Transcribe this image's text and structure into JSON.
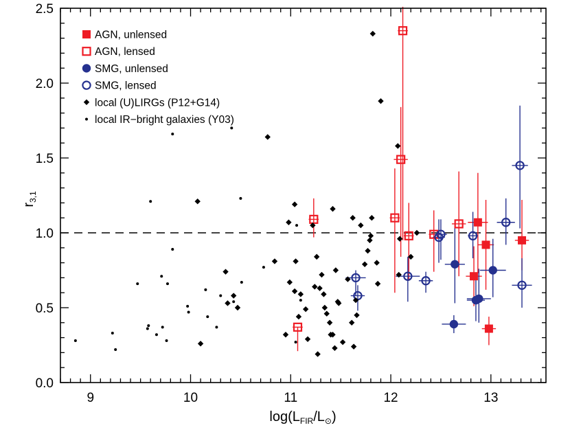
{
  "chart_data": {
    "type": "scatter",
    "x_label": {
      "prefix": "log(L",
      "sub": "FIR",
      "mid": "/L",
      "sun_sub": "⊙",
      "suffix": ")"
    },
    "y_label": {
      "main": "r",
      "sub": "3,1"
    },
    "xlim": [
      8.7,
      13.55
    ],
    "ylim": [
      0.0,
      2.5
    ],
    "x_ticks": [
      9,
      10,
      11,
      12,
      13
    ],
    "x_tick_labels": [
      "9",
      "10",
      "11",
      "12",
      "13"
    ],
    "y_ticks": [
      0.0,
      0.5,
      1.0,
      1.5,
      2.0,
      2.5
    ],
    "y_tick_labels": [
      "0.0",
      "0.5",
      "1.0",
      "1.5",
      "2.0",
      "2.5"
    ],
    "reference_line_y": 1.0,
    "legend_position": "top-left",
    "colors": {
      "agn": "#ee1c25",
      "smg": "#25318f",
      "local": "#000000"
    },
    "series": [
      {
        "name": "AGN, unlensed",
        "marker": "filled-square",
        "color": "#ee1c25",
        "points": [
          {
            "x": 12.87,
            "y": 1.07,
            "yerr": [
              0.34,
              0.33
            ],
            "xerr": 0.1
          },
          {
            "x": 12.95,
            "y": 0.92,
            "yerr": [
              0.3,
              0.3
            ],
            "xerr": 0.08
          },
          {
            "x": 12.83,
            "y": 0.71,
            "yerr": [
              0.2,
              0.2
            ],
            "xerr": 0.08
          },
          {
            "x": 12.98,
            "y": 0.36,
            "yerr": [
              0.11,
              0.08
            ],
            "xerr": 0.07
          },
          {
            "x": 13.31,
            "y": 0.95,
            "yerr": [
              0.2,
              0.27
            ],
            "xerr": 0.07
          }
        ]
      },
      {
        "name": "AGN, lensed",
        "marker": "open-square",
        "color": "#ee1c25",
        "points": [
          {
            "x": 11.07,
            "y": 0.37,
            "yerr": [
              0.16,
              0.0
            ],
            "xerr": 0.05
          },
          {
            "x": 11.23,
            "y": 1.09,
            "yerr": [
              0.12,
              0.14
            ],
            "xerr": 0.05
          },
          {
            "x": 12.04,
            "y": 1.1,
            "yerr": [
              0.5,
              0.33
            ],
            "xerr": 0.05
          },
          {
            "x": 12.1,
            "y": 1.49,
            "yerr": [
              0.65,
              0.35
            ],
            "xerr": 0.07
          },
          {
            "x": 12.12,
            "y": 2.35,
            "yerr": [
              1.4,
              0.16
            ],
            "xerr": 0.05
          },
          {
            "x": 12.18,
            "y": 0.98,
            "yerr": [
              0.3,
              0.22
            ],
            "xerr": 0.05
          },
          {
            "x": 12.43,
            "y": 0.99,
            "yerr": [
              0.25,
              0.16
            ],
            "xerr": 0.05
          },
          {
            "x": 12.68,
            "y": 1.06,
            "yerr": [
              0.35,
              0.35
            ],
            "xerr": 0.07
          }
        ]
      },
      {
        "name": "SMG, unlensed",
        "marker": "filled-circle",
        "color": "#25318f",
        "points": [
          {
            "x": 12.63,
            "y": 0.39,
            "yerr": [
              0.06,
              0.06
            ],
            "xerr": 0.12
          },
          {
            "x": 12.64,
            "y": 0.79,
            "yerr": [
              0.26,
              0.25
            ],
            "xerr": 0.1
          },
          {
            "x": 12.85,
            "y": 0.55,
            "yerr": [
              0.14,
              0.15
            ],
            "xerr": 0.09
          },
          {
            "x": 12.88,
            "y": 0.56,
            "yerr": [
              0.16,
              0.2
            ],
            "xerr": 0.12
          },
          {
            "x": 13.02,
            "y": 0.75,
            "yerr": [
              0.18,
              0.21
            ],
            "xerr": 0.13
          }
        ]
      },
      {
        "name": "SMG, lensed",
        "marker": "open-circle",
        "color": "#25318f",
        "points": [
          {
            "x": 11.65,
            "y": 0.7,
            "yerr": [
              0.12,
              0.05
            ],
            "xerr": 0.1
          },
          {
            "x": 11.67,
            "y": 0.58,
            "yerr": [
              0.1,
              0.07
            ],
            "xerr": 0.07
          },
          {
            "x": 12.17,
            "y": 0.71,
            "yerr": [
              0.17,
              0.13
            ],
            "xerr": 0.12
          },
          {
            "x": 12.35,
            "y": 0.68,
            "yerr": [
              0.08,
              0.06
            ],
            "xerr": 0.07
          },
          {
            "x": 12.48,
            "y": 0.97,
            "yerr": [
              0.17,
              0.12
            ],
            "xerr": 0.06
          },
          {
            "x": 12.5,
            "y": 0.99,
            "yerr": [
              0.17,
              0.1
            ],
            "xerr": 0.06
          },
          {
            "x": 12.82,
            "y": 0.98,
            "yerr": [
              0.15,
              0.16
            ],
            "xerr": 0.05
          },
          {
            "x": 13.15,
            "y": 1.07,
            "yerr": [
              0.15,
              0.16
            ],
            "xerr": 0.09
          },
          {
            "x": 13.29,
            "y": 1.45,
            "yerr": [
              0.42,
              0.4
            ],
            "xerr": 0.08
          },
          {
            "x": 13.31,
            "y": 0.65,
            "yerr": [
              0.15,
              0.18
            ],
            "xerr": 0.1
          }
        ]
      },
      {
        "name": "local (U)LIRGs (P12+G14)",
        "marker": "diamond",
        "color": "#000000",
        "points": [
          {
            "x": 10.07,
            "y": 1.21
          },
          {
            "x": 10.1,
            "y": 0.26
          },
          {
            "x": 10.35,
            "y": 0.74
          },
          {
            "x": 10.37,
            "y": 0.53
          },
          {
            "x": 10.43,
            "y": 0.58
          },
          {
            "x": 10.47,
            "y": 0.5
          },
          {
            "x": 10.77,
            "y": 1.64
          },
          {
            "x": 10.84,
            "y": 0.81
          },
          {
            "x": 10.95,
            "y": 0.32
          },
          {
            "x": 10.98,
            "y": 1.07
          },
          {
            "x": 10.99,
            "y": 0.67
          },
          {
            "x": 11.04,
            "y": 1.19
          },
          {
            "x": 11.05,
            "y": 0.81
          },
          {
            "x": 11.04,
            "y": 0.61
          },
          {
            "x": 11.08,
            "y": 0.44
          },
          {
            "x": 11.1,
            "y": 0.59
          },
          {
            "x": 11.15,
            "y": 0.49
          },
          {
            "x": 11.17,
            "y": 0.29
          },
          {
            "x": 11.22,
            "y": 1.05
          },
          {
            "x": 11.24,
            "y": 0.64
          },
          {
            "x": 11.26,
            "y": 0.84
          },
          {
            "x": 11.29,
            "y": 0.63
          },
          {
            "x": 11.27,
            "y": 0.19
          },
          {
            "x": 11.31,
            "y": 0.72
          },
          {
            "x": 11.33,
            "y": 0.59
          },
          {
            "x": 11.34,
            "y": 0.5
          },
          {
            "x": 11.36,
            "y": 0.46
          },
          {
            "x": 11.39,
            "y": 0.4
          },
          {
            "x": 11.4,
            "y": 0.32
          },
          {
            "x": 11.42,
            "y": 0.32
          },
          {
            "x": 11.42,
            "y": 1.16
          },
          {
            "x": 11.45,
            "y": 0.75
          },
          {
            "x": 11.47,
            "y": 0.54
          },
          {
            "x": 11.48,
            "y": 0.53
          },
          {
            "x": 11.44,
            "y": 0.23
          },
          {
            "x": 11.52,
            "y": 0.27
          },
          {
            "x": 11.57,
            "y": 0.69
          },
          {
            "x": 11.61,
            "y": 0.4
          },
          {
            "x": 11.63,
            "y": 0.24
          },
          {
            "x": 11.62,
            "y": 1.1
          },
          {
            "x": 11.65,
            "y": 0.55
          },
          {
            "x": 11.66,
            "y": 0.45
          },
          {
            "x": 11.7,
            "y": 1.05
          },
          {
            "x": 11.74,
            "y": 0.79
          },
          {
            "x": 11.77,
            "y": 0.88
          },
          {
            "x": 11.79,
            "y": 0.95
          },
          {
            "x": 11.8,
            "y": 0.98
          },
          {
            "x": 11.81,
            "y": 1.1
          },
          {
            "x": 11.82,
            "y": 2.33
          },
          {
            "x": 11.86,
            "y": 0.8
          },
          {
            "x": 11.87,
            "y": 0.66
          },
          {
            "x": 11.9,
            "y": 1.88
          },
          {
            "x": 12.07,
            "y": 1.58
          },
          {
            "x": 12.08,
            "y": 0.72
          },
          {
            "x": 12.2,
            "y": 0.84
          },
          {
            "x": 12.26,
            "y": 1.0
          },
          {
            "x": 12.09,
            "y": 0.96
          }
        ]
      },
      {
        "name": "local IR−bright galaxies (Y03)",
        "marker": "dot",
        "color": "#000000",
        "points": [
          {
            "x": 8.85,
            "y": 0.28
          },
          {
            "x": 9.22,
            "y": 0.33
          },
          {
            "x": 9.25,
            "y": 0.22
          },
          {
            "x": 9.47,
            "y": 0.66
          },
          {
            "x": 9.57,
            "y": 0.36
          },
          {
            "x": 9.58,
            "y": 0.38
          },
          {
            "x": 9.6,
            "y": 1.21
          },
          {
            "x": 9.66,
            "y": 0.32
          },
          {
            "x": 9.71,
            "y": 0.71
          },
          {
            "x": 9.72,
            "y": 0.37
          },
          {
            "x": 9.76,
            "y": 0.28
          },
          {
            "x": 9.77,
            "y": 0.66
          },
          {
            "x": 9.82,
            "y": 1.66
          },
          {
            "x": 9.82,
            "y": 0.89
          },
          {
            "x": 9.97,
            "y": 0.51
          },
          {
            "x": 9.98,
            "y": 0.47
          },
          {
            "x": 10.15,
            "y": 0.62
          },
          {
            "x": 10.17,
            "y": 0.44
          },
          {
            "x": 10.26,
            "y": 0.37
          },
          {
            "x": 10.3,
            "y": 0.58
          },
          {
            "x": 10.41,
            "y": 1.7
          },
          {
            "x": 10.43,
            "y": 0.54
          },
          {
            "x": 10.5,
            "y": 1.23
          },
          {
            "x": 10.51,
            "y": 0.67
          },
          {
            "x": 10.73,
            "y": 0.77
          },
          {
            "x": 11.06,
            "y": 1.05
          },
          {
            "x": 11.1,
            "y": 0.55
          },
          {
            "x": 11.05,
            "y": 0.27
          }
        ]
      }
    ]
  }
}
